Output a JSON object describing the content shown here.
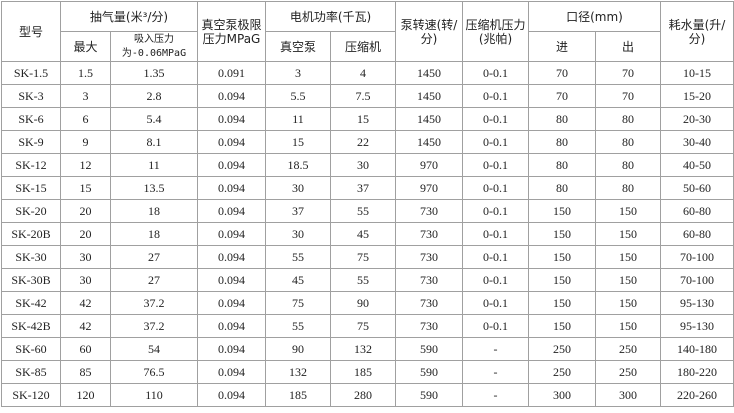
{
  "table": {
    "header": {
      "model": "型号",
      "flow": "抽气量(米³/分)",
      "flow_max": "最大",
      "flow_suction": "吸入压力为-0.06MPaG",
      "limit": "真空泵极限压力MPaG",
      "power": "电机功率(千瓦)",
      "power_pump": "真空泵",
      "power_comp": "压缩机",
      "speed": "泵转速(转/分)",
      "comp_pressure": "压缩机压力(兆帕)",
      "bore": "口径(mm)",
      "bore_in": "进",
      "bore_out": "出",
      "water": "耗水量(升/分)"
    },
    "rows": [
      [
        "SK-1.5",
        "1.5",
        "1.35",
        "0.091",
        "3",
        "4",
        "1450",
        "0-0.1",
        "70",
        "70",
        "10-15"
      ],
      [
        "SK-3",
        "3",
        "2.8",
        "0.094",
        "5.5",
        "7.5",
        "1450",
        "0-0.1",
        "70",
        "70",
        "15-20"
      ],
      [
        "SK-6",
        "6",
        "5.4",
        "0.094",
        "11",
        "15",
        "1450",
        "0-0.1",
        "80",
        "80",
        "20-30"
      ],
      [
        "SK-9",
        "9",
        "8.1",
        "0.094",
        "15",
        "22",
        "1450",
        "0-0.1",
        "80",
        "80",
        "30-40"
      ],
      [
        "SK-12",
        "12",
        "11",
        "0.094",
        "18.5",
        "30",
        "970",
        "0-0.1",
        "80",
        "80",
        "40-50"
      ],
      [
        "SK-15",
        "15",
        "13.5",
        "0.094",
        "30",
        "37",
        "970",
        "0-0.1",
        "80",
        "80",
        "50-60"
      ],
      [
        "SK-20",
        "20",
        "18",
        "0.094",
        "37",
        "55",
        "730",
        "0-0.1",
        "150",
        "150",
        "60-80"
      ],
      [
        "SK-20B",
        "20",
        "18",
        "0.094",
        "30",
        "45",
        "730",
        "0-0.1",
        "150",
        "150",
        "60-80"
      ],
      [
        "SK-30",
        "30",
        "27",
        "0.094",
        "55",
        "75",
        "730",
        "0-0.1",
        "150",
        "150",
        "70-100"
      ],
      [
        "SK-30B",
        "30",
        "27",
        "0.094",
        "45",
        "55",
        "730",
        "0-0.1",
        "150",
        "150",
        "70-100"
      ],
      [
        "SK-42",
        "42",
        "37.2",
        "0.094",
        "75",
        "90",
        "730",
        "0-0.1",
        "150",
        "150",
        "95-130"
      ],
      [
        "SK-42B",
        "42",
        "37.2",
        "0.094",
        "55",
        "75",
        "730",
        "0-0.1",
        "150",
        "150",
        "95-130"
      ],
      [
        "SK-60",
        "60",
        "54",
        "0.094",
        "90",
        "132",
        "590",
        "-",
        "250",
        "250",
        "140-180"
      ],
      [
        "SK-85",
        "85",
        "76.5",
        "0.094",
        "132",
        "185",
        "590",
        "-",
        "250",
        "250",
        "180-220"
      ],
      [
        "SK-120",
        "120",
        "110",
        "0.094",
        "185",
        "280",
        "590",
        "-",
        "300",
        "300",
        "220-260"
      ]
    ]
  }
}
